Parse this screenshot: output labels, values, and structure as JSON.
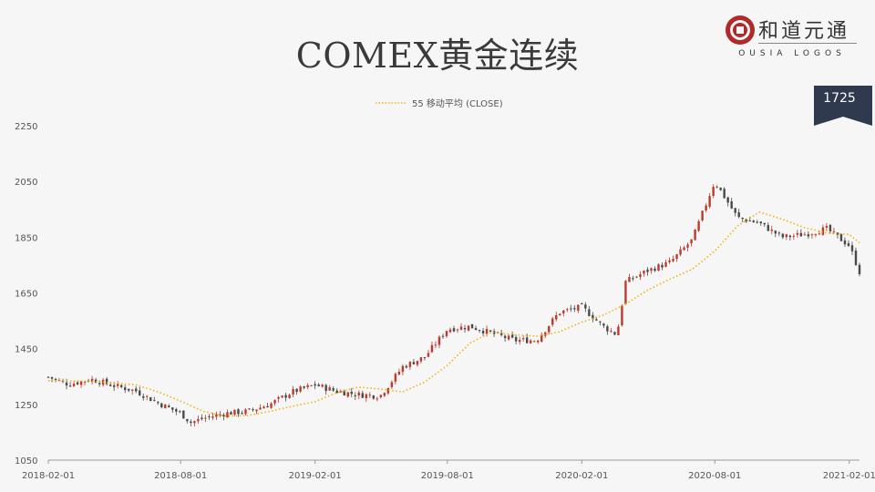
{
  "title": "COMEX黄金连续",
  "logo": {
    "name": "和道元通",
    "subtitle": "OUSIA LOGOS",
    "seal_color": "#b02a2a"
  },
  "badge": {
    "value": "1725",
    "color": "#2f3a4f"
  },
  "chart_data": {
    "type": "candlestick",
    "legend": [
      {
        "label": "55 移动平均 (CLOSE)",
        "color": "#f2b312",
        "style": "dotted"
      }
    ],
    "legend_position": "top-center",
    "ylim": [
      1050,
      2250
    ],
    "yticks": [
      1050,
      1250,
      1450,
      1650,
      1850,
      2050,
      2250
    ],
    "xlim": [
      "2018-02-01",
      "2021-02-15"
    ],
    "xticks": [
      "2018-02-01",
      "2018-08-01",
      "2019-02-01",
      "2019-08-01",
      "2020-02-01",
      "2020-08-01",
      "2021-02-01"
    ],
    "grid": false,
    "colors": {
      "up": "#c0392b",
      "down": "#4a4a4a",
      "ma": "#f2b312"
    },
    "close_series": [
      [
        "2018-02-01",
        1348
      ],
      [
        "2018-03-01",
        1322
      ],
      [
        "2018-04-01",
        1340
      ],
      [
        "2018-05-01",
        1318
      ],
      [
        "2018-06-01",
        1298
      ],
      [
        "2018-07-01",
        1255
      ],
      [
        "2018-08-01",
        1218
      ],
      [
        "2018-08-15",
        1185
      ],
      [
        "2018-09-01",
        1200
      ],
      [
        "2018-10-01",
        1218
      ],
      [
        "2018-11-01",
        1225
      ],
      [
        "2018-12-01",
        1250
      ],
      [
        "2019-01-01",
        1295
      ],
      [
        "2019-02-01",
        1320
      ],
      [
        "2019-03-01",
        1298
      ],
      [
        "2019-04-01",
        1285
      ],
      [
        "2019-05-01",
        1280
      ],
      [
        "2019-06-01",
        1385
      ],
      [
        "2019-07-01",
        1420
      ],
      [
        "2019-08-01",
        1520
      ],
      [
        "2019-09-01",
        1530
      ],
      [
        "2019-10-01",
        1505
      ],
      [
        "2019-11-01",
        1480
      ],
      [
        "2019-12-01",
        1480
      ],
      [
        "2020-01-01",
        1580
      ],
      [
        "2020-02-01",
        1600
      ],
      [
        "2020-03-01",
        1530
      ],
      [
        "2020-03-20",
        1500
      ],
      [
        "2020-04-01",
        1690
      ],
      [
        "2020-05-01",
        1730
      ],
      [
        "2020-06-01",
        1760
      ],
      [
        "2020-07-01",
        1840
      ],
      [
        "2020-08-01",
        2050
      ],
      [
        "2020-09-01",
        1920
      ],
      [
        "2020-10-01",
        1900
      ],
      [
        "2020-11-01",
        1850
      ],
      [
        "2020-12-01",
        1860
      ],
      [
        "2021-01-01",
        1880
      ],
      [
        "2021-02-01",
        1820
      ],
      [
        "2021-02-15",
        1725
      ]
    ],
    "ma_series": [
      [
        "2018-02-01",
        1335
      ],
      [
        "2018-04-01",
        1333
      ],
      [
        "2018-06-01",
        1320
      ],
      [
        "2018-07-01",
        1295
      ],
      [
        "2018-08-01",
        1262
      ],
      [
        "2018-09-01",
        1225
      ],
      [
        "2018-10-01",
        1208
      ],
      [
        "2018-11-01",
        1210
      ],
      [
        "2018-12-01",
        1225
      ],
      [
        "2019-01-01",
        1243
      ],
      [
        "2019-02-01",
        1260
      ],
      [
        "2019-03-01",
        1290
      ],
      [
        "2019-04-01",
        1312
      ],
      [
        "2019-05-01",
        1305
      ],
      [
        "2019-06-01",
        1295
      ],
      [
        "2019-07-01",
        1330
      ],
      [
        "2019-08-01",
        1390
      ],
      [
        "2019-09-01",
        1470
      ],
      [
        "2019-10-01",
        1510
      ],
      [
        "2019-11-01",
        1500
      ],
      [
        "2019-12-01",
        1495
      ],
      [
        "2020-01-01",
        1510
      ],
      [
        "2020-02-01",
        1545
      ],
      [
        "2020-03-01",
        1570
      ],
      [
        "2020-04-01",
        1610
      ],
      [
        "2020-05-01",
        1660
      ],
      [
        "2020-06-01",
        1700
      ],
      [
        "2020-07-01",
        1735
      ],
      [
        "2020-08-01",
        1800
      ],
      [
        "2020-09-01",
        1890
      ],
      [
        "2020-10-01",
        1940
      ],
      [
        "2020-11-01",
        1915
      ],
      [
        "2020-12-01",
        1885
      ],
      [
        "2021-01-01",
        1865
      ],
      [
        "2021-02-01",
        1860
      ],
      [
        "2021-02-15",
        1830
      ]
    ]
  }
}
